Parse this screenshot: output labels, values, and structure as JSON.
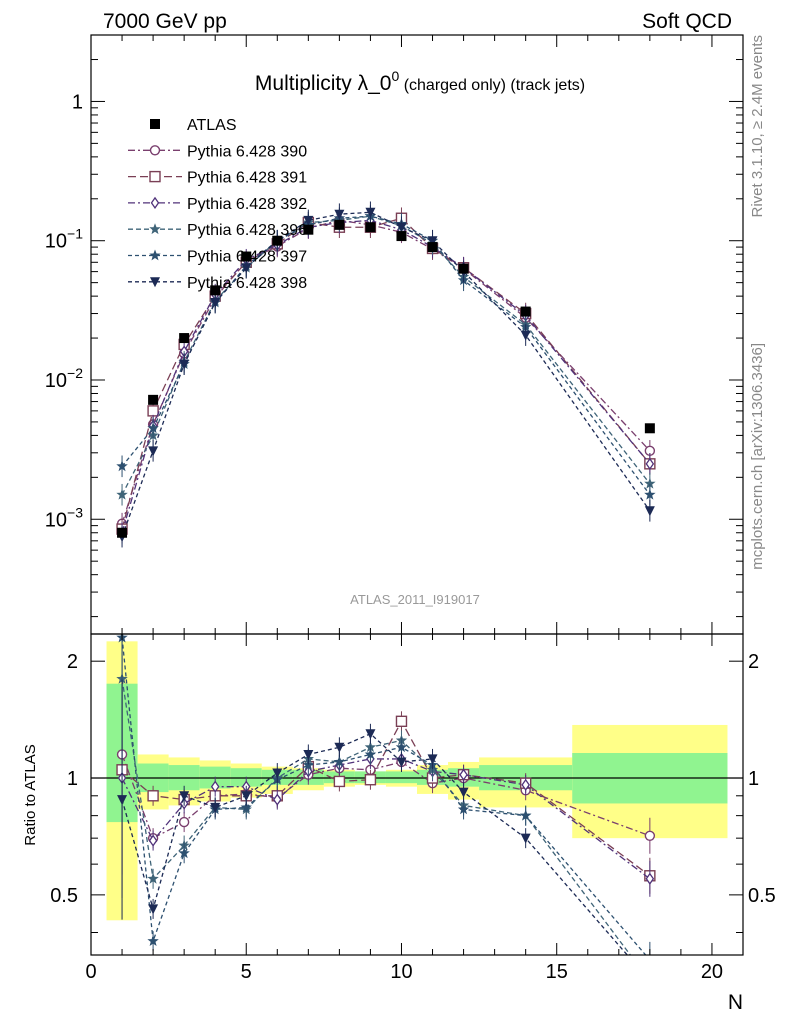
{
  "header": {
    "left": "7000 GeV pp",
    "right": "Soft QCD"
  },
  "side_text": {
    "top": "Rivet 3.1.10, ≥ 2.4M events",
    "bottom": "mcplots.cern.ch [arXiv:1306.3436]"
  },
  "watermark": "ATLAS_2011_I919017",
  "colors": {
    "ATLAS": "#000000",
    "390": "#7a3f6e",
    "391": "#7a3f55",
    "392": "#50327a",
    "396": "#3f6478",
    "397": "#2d5070",
    "398": "#1c2a55",
    "band_inner": "#90f490",
    "band_outer": "#ffff88"
  },
  "chart_data": {
    "type": "scatter",
    "title": {
      "main": "Multiplicity λ_0",
      "sup": "0",
      "small": " (charged only) (track jets)"
    },
    "xlabel": "N",
    "ratio_ylabel": "Ratio to ATLAS",
    "xlim": [
      0,
      21
    ],
    "ylim_main": [
      0.00015,
      3
    ],
    "ylim_ratio": [
      0.35,
      2.35
    ],
    "yscale_main": "log",
    "grid": false,
    "legend_position": "top-left",
    "x_ticks": [
      "0",
      "5",
      "10",
      "15",
      "20"
    ],
    "y_ticks_main": [
      {
        "v": 1,
        "base": "1",
        "exp": ""
      },
      {
        "v": 0.1,
        "base": "10",
        "exp": "−1"
      },
      {
        "v": 0.01,
        "base": "10",
        "exp": "−2"
      },
      {
        "v": 0.001,
        "base": "10",
        "exp": "−3"
      }
    ],
    "y_ticks_ratio": [
      "0.5",
      "1",
      "2"
    ],
    "x": [
      1,
      2,
      3,
      4,
      5,
      6,
      7,
      8,
      9,
      10,
      11,
      12,
      14,
      18
    ],
    "data": {
      "name": "ATLAS",
      "values": [
        0.0008,
        0.0072,
        0.02,
        0.044,
        0.077,
        0.1,
        0.12,
        0.13,
        0.125,
        0.108,
        0.09,
        0.063,
        0.031,
        0.0045
      ],
      "band_edges": [
        0.5,
        1.5,
        2.5,
        3.5,
        4.5,
        5.5,
        6.5,
        7.5,
        8.5,
        9.5,
        10.5,
        11.5,
        12.5,
        15.5,
        20.5
      ],
      "band_inner_lo": [
        0.77,
        0.92,
        0.93,
        0.94,
        0.95,
        0.96,
        0.96,
        0.97,
        0.97,
        0.97,
        0.96,
        0.95,
        0.93,
        0.86
      ],
      "band_inner_hi": [
        1.75,
        1.09,
        1.08,
        1.07,
        1.06,
        1.05,
        1.05,
        1.04,
        1.04,
        1.04,
        1.05,
        1.06,
        1.08,
        1.16
      ],
      "band_outer_lo": [
        0.43,
        0.83,
        0.85,
        0.87,
        0.89,
        0.91,
        0.93,
        0.95,
        0.96,
        0.95,
        0.91,
        0.88,
        0.84,
        0.7
      ],
      "band_outer_hi": [
        2.25,
        1.15,
        1.13,
        1.11,
        1.09,
        1.07,
        1.06,
        1.05,
        1.04,
        1.05,
        1.08,
        1.1,
        1.13,
        1.37
      ]
    },
    "series": [
      {
        "name": "Pythia 6.428 390",
        "key": "390",
        "marker": "circle",
        "dash": "7,3,2,3",
        "values": [
          0.00093,
          0.0048,
          0.0155,
          0.039,
          0.071,
          0.091,
          0.123,
          0.14,
          0.13,
          0.115,
          0.087,
          0.063,
          0.028,
          0.0031
        ],
        "ratio": [
          1.15,
          0.7,
          0.77,
          0.9,
          0.91,
          0.89,
          1.02,
          1.06,
          1.05,
          1.1,
          0.97,
          1.0,
          0.93,
          0.71
        ]
      },
      {
        "name": "Pythia 6.428 391",
        "key": "391",
        "marker": "square",
        "dash": "8,4",
        "values": [
          0.00085,
          0.006,
          0.018,
          0.04,
          0.07,
          0.095,
          0.135,
          0.125,
          0.125,
          0.145,
          0.088,
          0.064,
          0.03,
          0.0025
        ],
        "ratio": [
          1.05,
          0.9,
          0.88,
          0.9,
          0.9,
          0.9,
          1.07,
          0.98,
          0.99,
          1.4,
          1.0,
          1.02,
          0.97,
          0.56
        ]
      },
      {
        "name": "Pythia 6.428 392",
        "key": "392",
        "marker": "diamond",
        "dash": "7,3,2,3",
        "values": [
          0.0008,
          0.0047,
          0.016,
          0.041,
          0.073,
          0.093,
          0.125,
          0.135,
          0.14,
          0.12,
          0.09,
          0.064,
          0.029,
          0.0025
        ],
        "ratio": [
          1.0,
          0.69,
          0.86,
          0.95,
          0.95,
          0.88,
          1.04,
          1.08,
          1.12,
          1.12,
          1.04,
          1.02,
          0.96,
          0.55
        ]
      },
      {
        "name": "Pythia 6.428 396",
        "key": "396",
        "marker": "star",
        "dash": "5,3",
        "values": [
          0.0015,
          0.004,
          0.0135,
          0.037,
          0.064,
          0.1,
          0.135,
          0.14,
          0.15,
          0.128,
          0.095,
          0.055,
          0.025,
          0.0018
        ],
        "ratio": [
          1.8,
          0.55,
          0.67,
          0.84,
          0.83,
          1.0,
          1.12,
          1.1,
          1.2,
          1.25,
          1.05,
          0.85,
          0.8,
          0.3
        ]
      },
      {
        "name": "Pythia 6.428 397",
        "key": "397",
        "marker": "star",
        "dash": "4,3",
        "values": [
          0.0024,
          0.0045,
          0.013,
          0.036,
          0.066,
          0.1,
          0.13,
          0.145,
          0.15,
          0.132,
          0.1,
          0.052,
          0.024,
          0.0015
        ],
        "ratio": [
          2.3,
          0.38,
          0.64,
          0.83,
          0.84,
          0.99,
          1.08,
          1.1,
          1.15,
          1.2,
          1.08,
          0.83,
          0.8,
          0.34
        ]
      },
      {
        "name": "Pythia 6.428 398",
        "key": "398",
        "marker": "triangle-down",
        "dash": "4,3",
        "values": [
          0.00075,
          0.0031,
          0.013,
          0.036,
          0.064,
          0.1,
          0.14,
          0.155,
          0.16,
          0.125,
          0.1,
          0.06,
          0.021,
          0.00115
        ],
        "ratio": [
          0.88,
          0.46,
          0.9,
          0.84,
          0.9,
          1.03,
          1.15,
          1.2,
          1.3,
          1.1,
          1.12,
          0.92,
          0.7,
          0.26
        ]
      }
    ]
  }
}
